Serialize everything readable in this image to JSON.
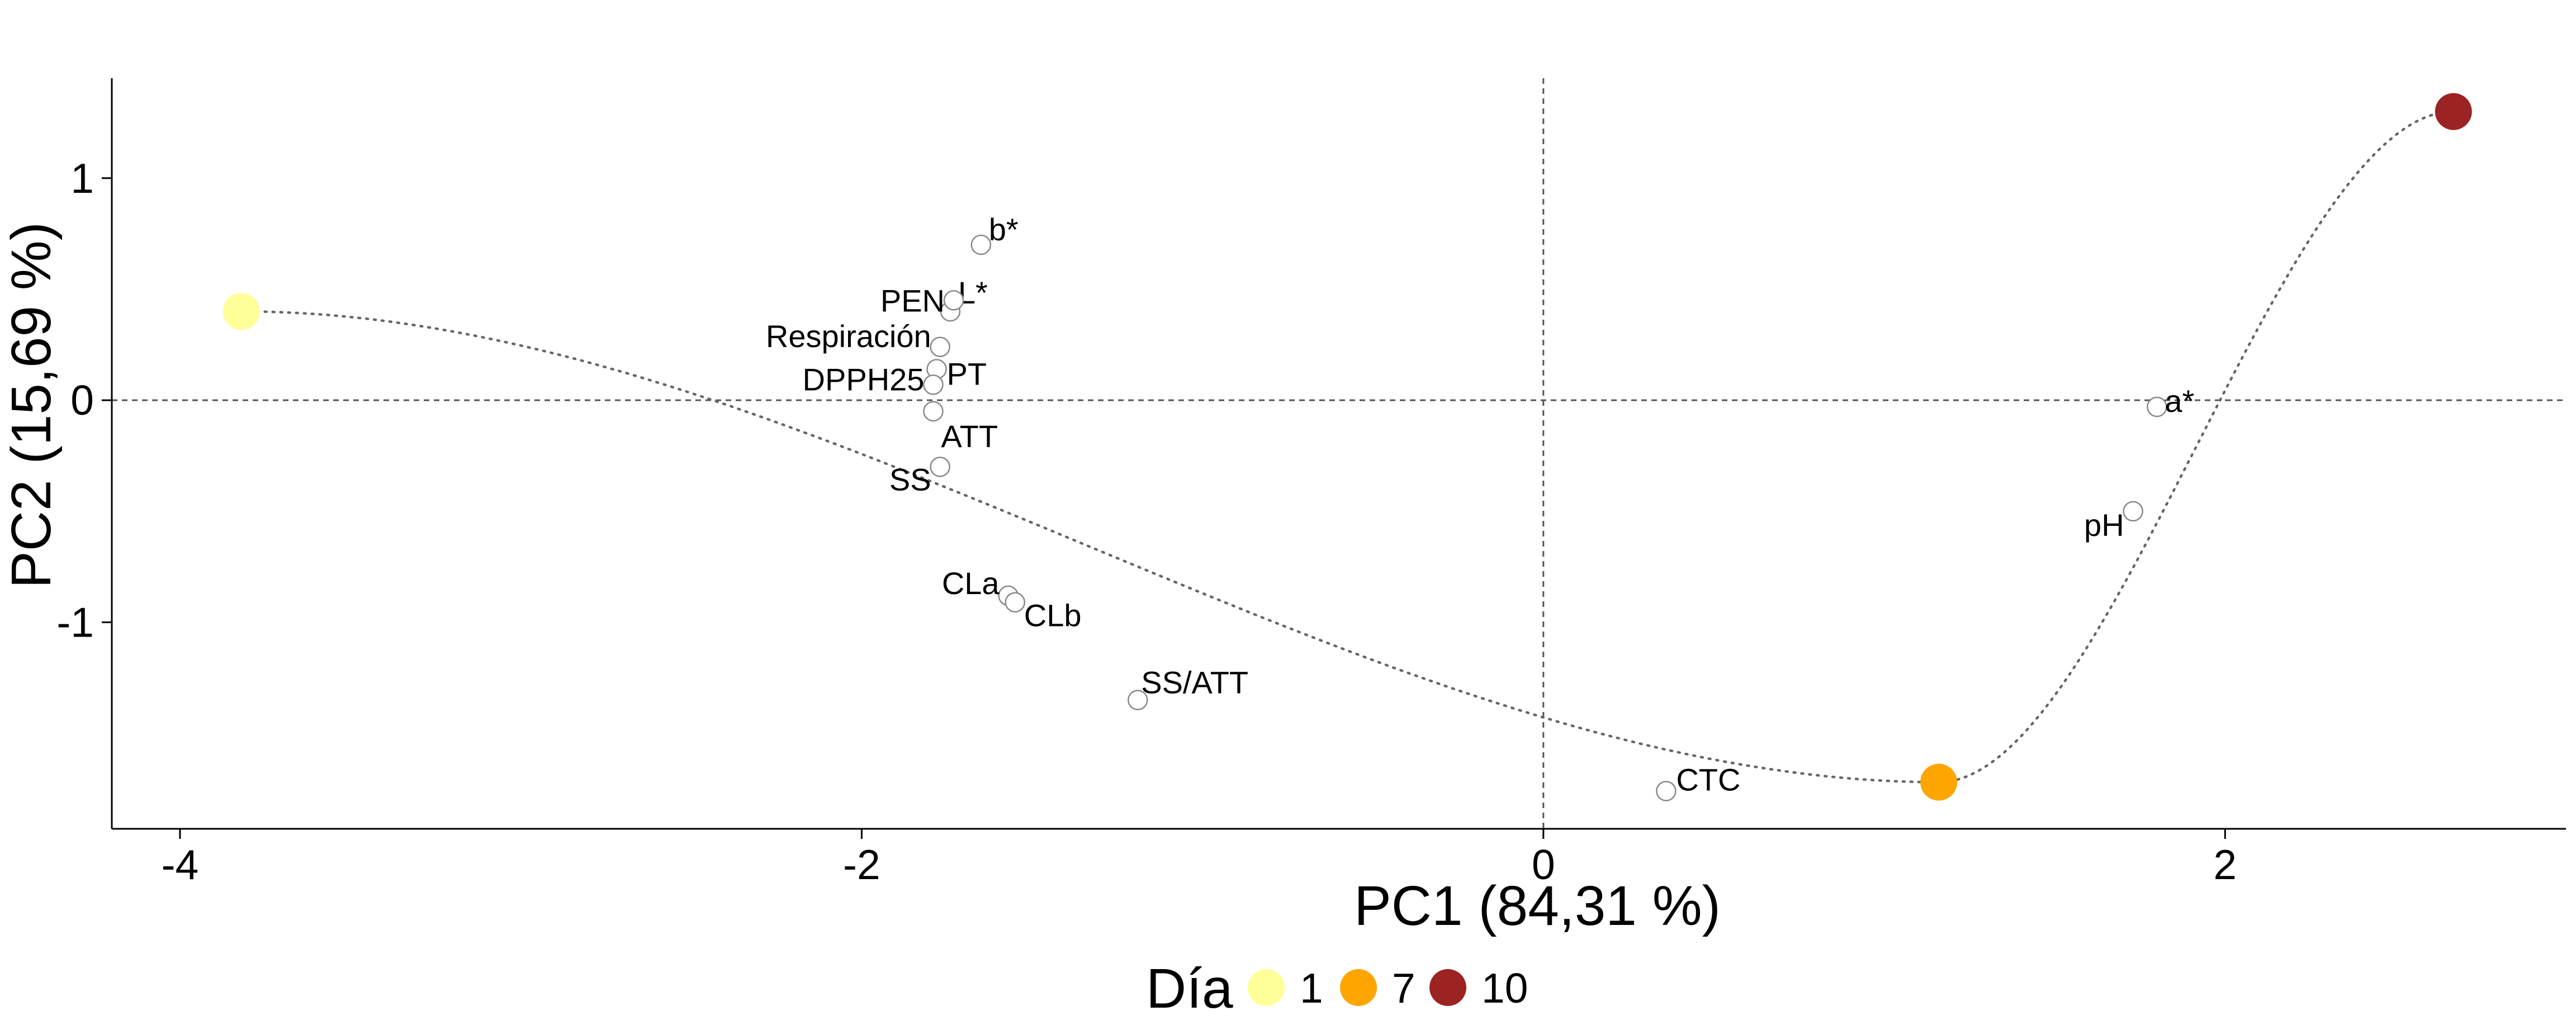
{
  "chart_data": {
    "type": "scatter",
    "xlabel": "PC1 (84,31 %)",
    "ylabel": "PC2 (15,69 %)",
    "xlim": [
      -4.2,
      3.0
    ],
    "ylim": [
      -1.93,
      1.45
    ],
    "xticks": [
      -4,
      -2,
      0,
      2
    ],
    "xtick_labels": [
      "-4",
      "-2",
      "0",
      "2"
    ],
    "yticks": [
      1,
      0,
      -1
    ],
    "ytick_labels": [
      "1",
      "0",
      "-1"
    ],
    "reference_lines": {
      "x": 0,
      "y": 0,
      "style": "dashed"
    },
    "variables": [
      {
        "name": "b*",
        "x": -1.65,
        "y": 0.7
      },
      {
        "name": "L*",
        "x": -1.74,
        "y": 0.4
      },
      {
        "name": "PEN",
        "x": -1.73,
        "y": 0.45
      },
      {
        "name": "Respiración",
        "x": -1.77,
        "y": 0.24
      },
      {
        "name": "PT",
        "x": -1.78,
        "y": 0.14
      },
      {
        "name": "DPPH25",
        "x": -1.79,
        "y": 0.07
      },
      {
        "name": "ATT",
        "x": -1.79,
        "y": -0.05
      },
      {
        "name": "SS",
        "x": -1.77,
        "y": -0.3
      },
      {
        "name": "CLa",
        "x": -1.57,
        "y": -0.88
      },
      {
        "name": "CLb",
        "x": -1.55,
        "y": -0.91
      },
      {
        "name": "SS/ATT",
        "x": -1.19,
        "y": -1.35
      },
      {
        "name": "CTC",
        "x": 0.36,
        "y": -1.76
      },
      {
        "name": "a*",
        "x": 1.8,
        "y": -0.03
      },
      {
        "name": "pH",
        "x": 1.73,
        "y": -0.5
      }
    ],
    "series": [
      {
        "name": "1",
        "x": -3.82,
        "y": 0.4,
        "color": "#FFFF99"
      },
      {
        "name": "7",
        "x": 1.16,
        "y": -1.72,
        "color": "#FFA500"
      },
      {
        "name": "10",
        "x": 2.67,
        "y": 1.3,
        "color": "#9B2323"
      }
    ],
    "trajectory": [
      [
        -3.82,
        0.4
      ],
      [
        1.16,
        -1.72
      ],
      [
        2.67,
        1.3
      ]
    ],
    "legend": {
      "title": "Día",
      "position": "bottom",
      "entries": [
        "1",
        "7",
        "10"
      ]
    }
  }
}
